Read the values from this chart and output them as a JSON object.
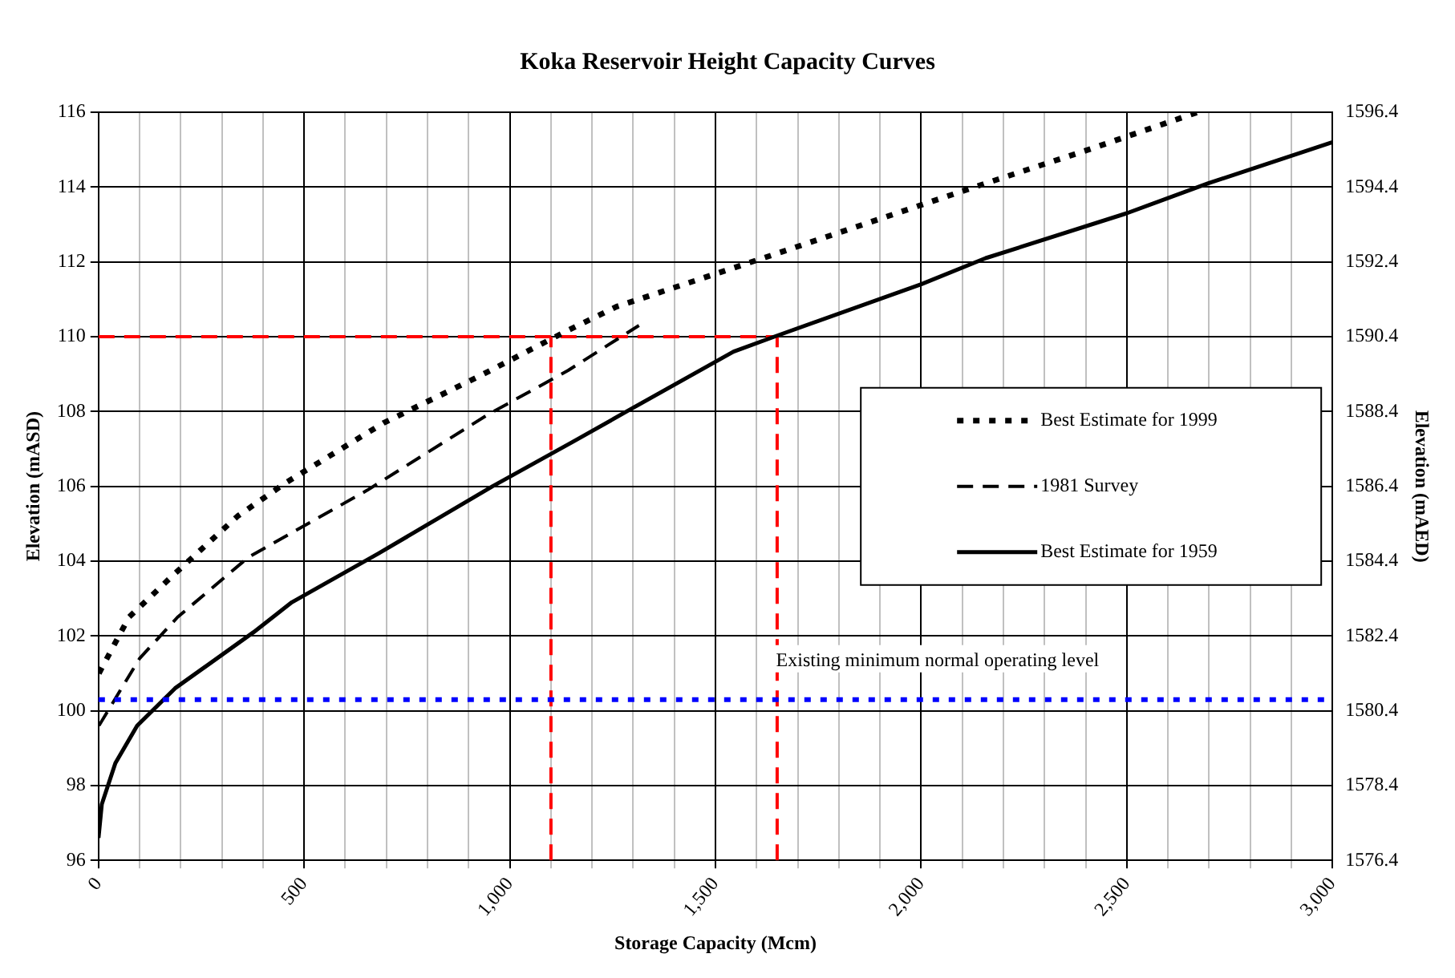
{
  "chart_data": {
    "type": "line",
    "title": "Koka Reservoir Height Capacity Curves",
    "xlabel": "Storage Capacity (Mcm)",
    "ylabel": "Elevation (mASD)",
    "y2label": "Elevation (mAED)",
    "xlim": [
      0,
      3000
    ],
    "xticks": [
      0,
      {
        "value": 100,
        "label": null
      },
      {
        "value": 200,
        "label": null
      },
      {
        "value": 300,
        "label": null
      },
      {
        "value": 400,
        "label": null
      },
      500,
      {
        "value": 600,
        "label": null
      },
      {
        "value": 700,
        "label": null
      },
      {
        "value": 800,
        "label": null
      },
      {
        "value": 900,
        "label": null
      },
      {
        "value": 1000,
        "label": "1,000"
      },
      {
        "value": 1100,
        "label": null
      },
      {
        "value": 1200,
        "label": null
      },
      {
        "value": 1300,
        "label": null
      },
      {
        "value": 1400,
        "label": null
      },
      {
        "value": 1500,
        "label": "1,500"
      },
      {
        "value": 1600,
        "label": null
      },
      {
        "value": 1700,
        "label": null
      },
      {
        "value": 1800,
        "label": null
      },
      {
        "value": 1900,
        "label": null
      },
      {
        "value": 2000,
        "label": "2,000"
      },
      {
        "value": 2100,
        "label": null
      },
      {
        "value": 2200,
        "label": null
      },
      {
        "value": 2300,
        "label": null
      },
      {
        "value": 2400,
        "label": null
      },
      {
        "value": 2500,
        "label": "2,500"
      },
      {
        "value": 2600,
        "label": null
      },
      {
        "value": 2700,
        "label": null
      },
      {
        "value": 2800,
        "label": null
      },
      {
        "value": 2900,
        "label": null
      },
      {
        "value": 3000,
        "label": "3,000"
      }
    ],
    "ylim": [
      96,
      116
    ],
    "yticks": [
      96,
      98,
      100,
      102,
      104,
      106,
      108,
      110,
      112,
      114,
      116
    ],
    "y2lim": [
      1576.4,
      1596.4
    ],
    "y2ticks": [
      1576.4,
      1578.4,
      1580.4,
      1582.4,
      1584.4,
      1586.4,
      1588.4,
      1590.4,
      1592.4,
      1594.4,
      1596.4
    ],
    "grid": true,
    "legend": "right",
    "marker": "none",
    "series": [
      {
        "name": "Best Estimate for 1999",
        "color": "#000000",
        "line_style": "dotted",
        "x": [
          1,
          74,
          179,
          338,
          456,
          694,
          918,
          1129,
          1259,
          1643,
          2157,
          2407,
          2672
        ],
        "values": [
          101.0,
          102.5,
          103.6,
          105.2,
          106.1,
          107.7,
          108.9,
          110.1,
          110.8,
          112.2,
          114.1,
          115.0,
          116.0
        ]
      },
      {
        "name": "1981 Survey",
        "color": "#000000",
        "line_style": "dashed",
        "x": [
          1,
          100,
          192,
          364,
          654,
          944,
          1142,
          1314
        ],
        "values": [
          99.6,
          101.4,
          102.5,
          104.1,
          105.9,
          107.9,
          109.1,
          110.3
        ]
      },
      {
        "name": "Best Estimate for 1959",
        "color": "#000000",
        "line_style": "solid",
        "x": [
          0,
          8,
          41,
          94,
          186,
          377,
          470,
          680,
          958,
          1155,
          1300,
          1544,
          1643,
          2000,
          2157,
          2500,
          2698,
          3000
        ],
        "values": [
          96.6,
          97.5,
          98.6,
          99.6,
          100.6,
          102.1,
          102.9,
          104.2,
          106.0,
          107.2,
          108.1,
          109.6,
          110.0,
          111.4,
          112.1,
          113.3,
          114.1,
          115.2
        ]
      },
      {
        "type": "line",
        "color": "#ff0000",
        "line_style": "dashed",
        "x": [
          0,
          1650
        ],
        "values": [
          110,
          110
        ]
      },
      {
        "type": "line",
        "color": "#ff0000",
        "line_style": "dashed",
        "x": [
          1100,
          1100
        ],
        "values": [
          96,
          110
        ]
      },
      {
        "type": "line",
        "color": "#ff0000",
        "line_style": "dashed",
        "x": [
          1650,
          1650
        ],
        "values": [
          96,
          110
        ]
      }
    ],
    "ref_lines": [
      {
        "axis": "y",
        "value": 100.3,
        "label": "Existing minimum normal operating level",
        "color": "#0000ff",
        "line_style": "dotted"
      }
    ]
  }
}
